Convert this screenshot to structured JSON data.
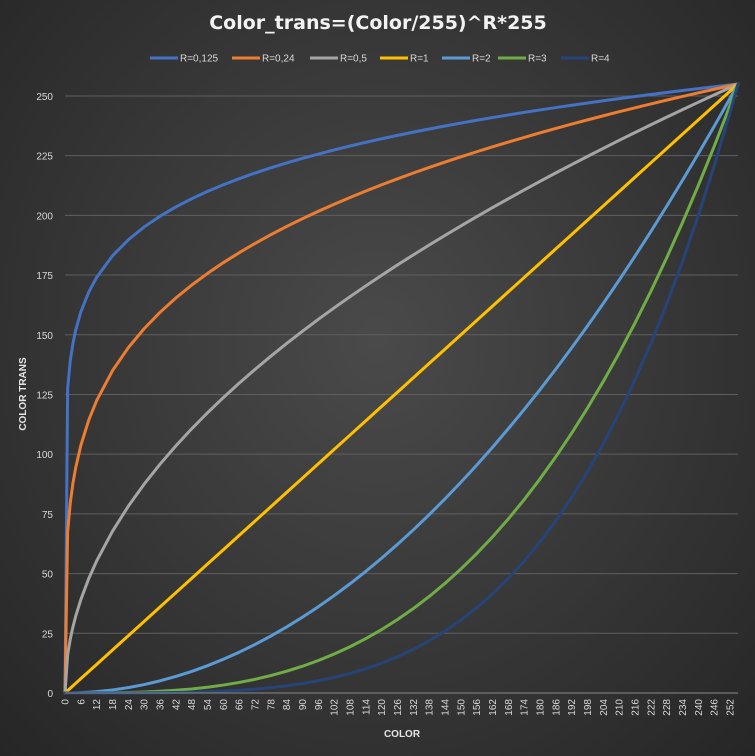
{
  "chart_data": {
    "type": "line",
    "title": "Color_trans=(Color/255)^R*255",
    "xlabel": "COLOR",
    "ylabel": "COLOR TRANS",
    "xlim": [
      0,
      255
    ],
    "ylim": [
      0,
      255
    ],
    "x_ticks": [
      "0",
      "6",
      "12",
      "18",
      "24",
      "30",
      "36",
      "42",
      "48",
      "54",
      "60",
      "66",
      "72",
      "78",
      "84",
      "90",
      "96",
      "102",
      "108",
      "114",
      "120",
      "126",
      "132",
      "138",
      "144",
      "150",
      "156",
      "162",
      "168",
      "174",
      "180",
      "186",
      "192",
      "198",
      "204",
      "210",
      "216",
      "222",
      "228",
      "234",
      "240",
      "246",
      "252"
    ],
    "y_ticks": [
      "0",
      "25",
      "50",
      "75",
      "100",
      "125",
      "150",
      "175",
      "200",
      "225",
      "250"
    ],
    "grid": "horizontal",
    "legend_position": "top",
    "formula": "y = (x/255)^R * 255",
    "x": [
      0,
      1,
      2,
      3,
      4,
      6,
      9,
      12,
      18,
      24,
      30,
      36,
      42,
      48,
      54,
      60,
      66,
      72,
      78,
      84,
      90,
      96,
      102,
      108,
      114,
      120,
      126,
      132,
      138,
      144,
      150,
      156,
      162,
      168,
      174,
      180,
      186,
      192,
      198,
      204,
      210,
      216,
      222,
      228,
      234,
      240,
      246,
      252,
      255
    ],
    "series": [
      {
        "name": "R=0,125",
        "R": 0.125,
        "color": "#4472c4"
      },
      {
        "name": "R=0,24",
        "R": 0.24,
        "color": "#ed7d31"
      },
      {
        "name": "R=0,5",
        "R": 0.5,
        "color": "#a5a5a5"
      },
      {
        "name": "R=1",
        "R": 1,
        "color": "#ffc000"
      },
      {
        "name": "R=2",
        "R": 2,
        "color": "#5b9bd5"
      },
      {
        "name": "R=3",
        "R": 3,
        "color": "#70ad47"
      },
      {
        "name": "R=4",
        "R": 4,
        "color": "#264478"
      }
    ]
  }
}
